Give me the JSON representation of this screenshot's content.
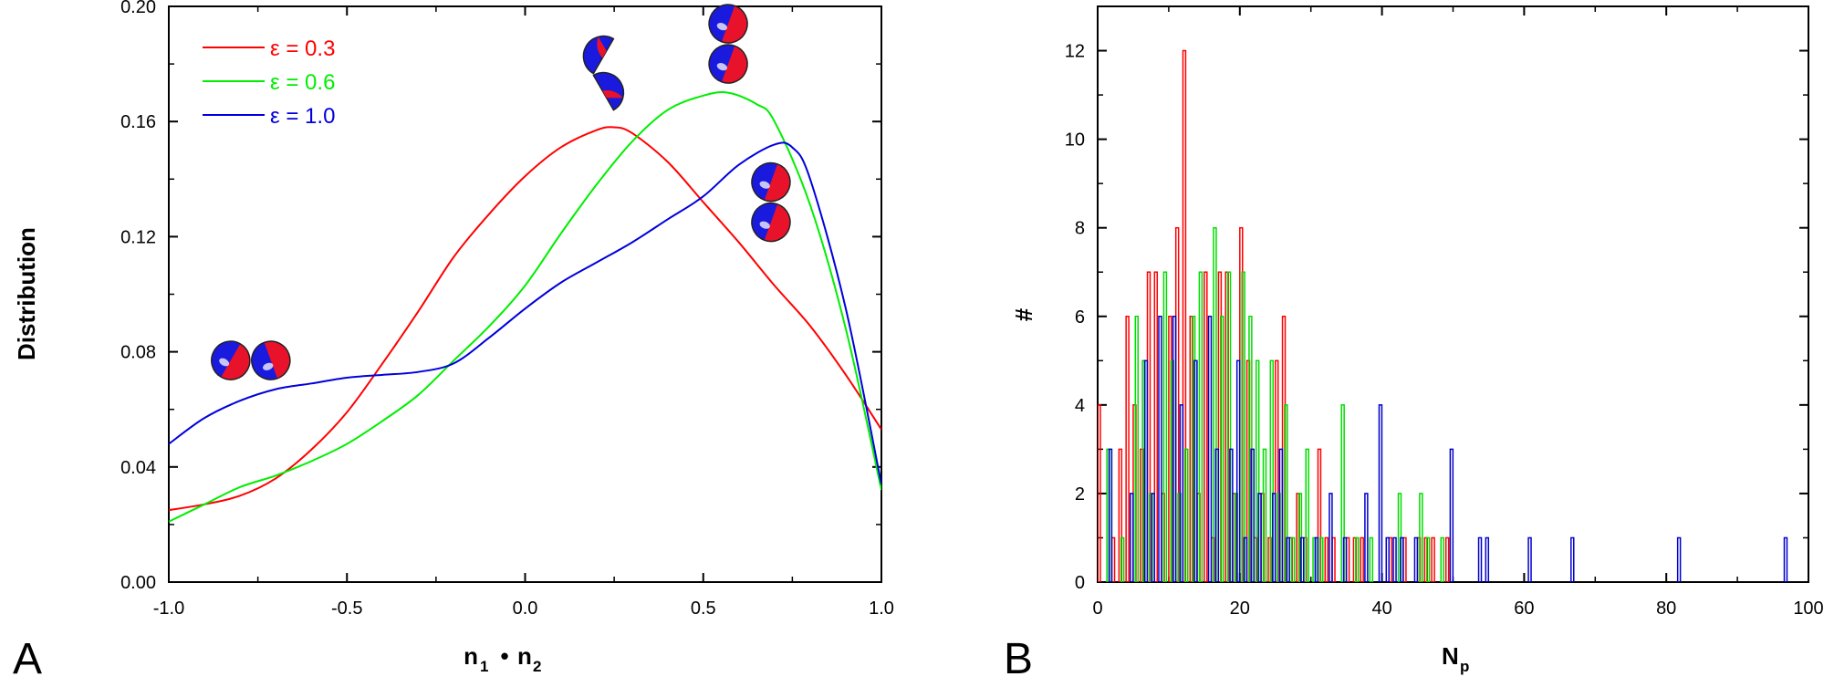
{
  "chart_data": [
    {
      "type": "line",
      "panel_label": "A",
      "ylabel": "Distribution",
      "xlabel": {
        "left": "n",
        "left_sub": "1",
        "dot": "•",
        "right": "n",
        "right_sub": "2"
      },
      "xlim": [
        -1.0,
        1.0
      ],
      "ylim": [
        0.0,
        0.2
      ],
      "x_ticks": [
        "-1.0",
        "-0.5",
        "0.0",
        "0.5",
        "1.0"
      ],
      "y_ticks": [
        "0.00",
        "0.04",
        "0.08",
        "0.12",
        "0.16",
        "0.20"
      ],
      "legend_position": "top-left",
      "series": [
        {
          "name": "ε = 0.3",
          "color": "#ff0000",
          "x": [
            -1.0,
            -0.9,
            -0.8,
            -0.7,
            -0.6,
            -0.5,
            -0.4,
            -0.3,
            -0.2,
            -0.1,
            0.0,
            0.1,
            0.2,
            0.25,
            0.3,
            0.4,
            0.5,
            0.6,
            0.7,
            0.8,
            0.9,
            1.0
          ],
          "y": [
            0.025,
            0.027,
            0.03,
            0.036,
            0.046,
            0.059,
            0.076,
            0.094,
            0.113,
            0.128,
            0.141,
            0.151,
            0.157,
            0.158,
            0.156,
            0.146,
            0.132,
            0.118,
            0.103,
            0.089,
            0.072,
            0.053
          ]
        },
        {
          "name": "ε = 0.6",
          "color": "#00ee00",
          "x": [
            -1.0,
            -0.9,
            -0.8,
            -0.7,
            -0.6,
            -0.5,
            -0.4,
            -0.3,
            -0.2,
            -0.1,
            0.0,
            0.1,
            0.2,
            0.3,
            0.4,
            0.5,
            0.57,
            0.65,
            0.7,
            0.8,
            0.9,
            1.0
          ],
          "y": [
            0.021,
            0.027,
            0.033,
            0.037,
            0.042,
            0.048,
            0.056,
            0.065,
            0.077,
            0.089,
            0.103,
            0.121,
            0.138,
            0.153,
            0.164,
            0.169,
            0.17,
            0.166,
            0.16,
            0.131,
            0.088,
            0.032
          ]
        },
        {
          "name": "ε = 1.0",
          "color": "#0000dd",
          "x": [
            -1.0,
            -0.9,
            -0.8,
            -0.7,
            -0.6,
            -0.5,
            -0.4,
            -0.3,
            -0.2,
            -0.1,
            0.0,
            0.1,
            0.2,
            0.3,
            0.4,
            0.5,
            0.6,
            0.7,
            0.75,
            0.8,
            0.9,
            1.0
          ],
          "y": [
            0.048,
            0.057,
            0.063,
            0.067,
            0.069,
            0.071,
            0.072,
            0.073,
            0.076,
            0.085,
            0.095,
            0.104,
            0.111,
            0.118,
            0.126,
            0.134,
            0.145,
            0.152,
            0.151,
            0.14,
            0.095,
            0.034
          ]
        }
      ],
      "insets": [
        {
          "x": -0.77,
          "y": 0.077,
          "icon": "side-by-side-spheres-icon"
        },
        {
          "x": 0.22,
          "y": 0.177,
          "icon": "bent-sphere-pair-icon"
        },
        {
          "x": 0.57,
          "y": 0.187,
          "icon": "stacked-spheres-icon"
        },
        {
          "x": 0.69,
          "y": 0.132,
          "icon": "stacked-spheres-icon"
        }
      ]
    },
    {
      "type": "bar",
      "panel_label": "B",
      "ylabel": "#",
      "xlabel": {
        "main": "N",
        "sub": "p"
      },
      "xlim": [
        0,
        100
      ],
      "ylim": [
        0,
        13
      ],
      "x_ticks": [
        "0",
        "20",
        "40",
        "60",
        "80",
        "100"
      ],
      "y_ticks": [
        "0",
        "2",
        "4",
        "6",
        "8",
        "10",
        "12"
      ],
      "series": [
        {
          "name": "",
          "color": "#ff0000",
          "x": [
            0,
            2,
            3,
            4,
            5,
            6,
            7,
            8,
            9,
            10,
            11,
            12,
            13,
            14,
            15,
            16,
            17,
            18,
            19,
            20,
            21,
            22,
            23,
            24,
            25,
            26,
            27,
            28,
            29,
            31,
            32,
            33,
            35,
            36,
            37,
            41,
            43,
            45,
            46,
            47,
            49
          ],
          "y": [
            4,
            1,
            3,
            6,
            4,
            3,
            7,
            7,
            2,
            6,
            8,
            12,
            6,
            2,
            7,
            1,
            7,
            7,
            2,
            8,
            5,
            1,
            2,
            1,
            5,
            6,
            1,
            2,
            1,
            3,
            1,
            1,
            1,
            1,
            1,
            1,
            1,
            1,
            1,
            1,
            1
          ]
        },
        {
          "name": "",
          "color": "#00dd00",
          "x": [
            1,
            3,
            5,
            6,
            7,
            9,
            10,
            11,
            12,
            13,
            14,
            16,
            17,
            18,
            19,
            20,
            21,
            22,
            23,
            24,
            25,
            26,
            27,
            28,
            29,
            30,
            31,
            34,
            36,
            38,
            42,
            45,
            46,
            48
          ],
          "y": [
            3,
            1,
            6,
            5,
            2,
            7,
            5,
            2,
            3,
            6,
            7,
            8,
            6,
            7,
            2,
            7,
            6,
            5,
            3,
            5,
            2,
            4,
            1,
            2,
            3,
            1,
            1,
            4,
            1,
            1,
            2,
            2,
            1,
            1
          ]
        },
        {
          "name": "",
          "color": "#0000cc",
          "x": [
            1,
            4,
            6,
            7,
            8,
            10,
            11,
            13,
            15,
            16,
            18,
            19,
            20,
            21,
            22,
            24,
            25,
            26,
            28,
            30,
            32,
            34,
            37,
            39,
            40,
            41,
            42,
            44,
            49,
            53,
            54,
            60,
            66,
            81,
            96
          ],
          "y": [
            3,
            2,
            5,
            2,
            6,
            6,
            4,
            5,
            6,
            3,
            3,
            5,
            1,
            3,
            2,
            2,
            3,
            1,
            1,
            1,
            2,
            1,
            2,
            4,
            1,
            1,
            1,
            1,
            3,
            1,
            1,
            1,
            1,
            1,
            1
          ]
        }
      ]
    }
  ]
}
